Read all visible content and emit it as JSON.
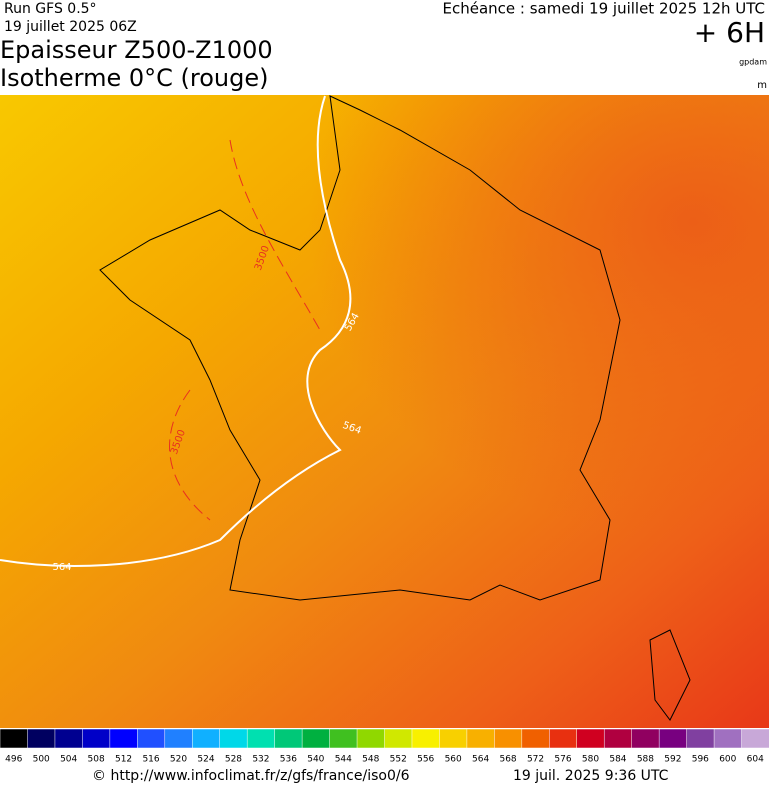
{
  "header": {
    "run": "Run GFS 0.5°",
    "date": "19 juillet 2025 06Z",
    "title1": "Epaisseur Z500-Z1000",
    "title2": "Isotherme 0°C (rouge)",
    "echeance": "Echéance : samedi 19 juillet 2025 12h UTC",
    "offset": "+ 6H",
    "unit1": "gpdam",
    "unit2": "m"
  },
  "map": {
    "contours": [
      {
        "value": 3500,
        "color": "#e83020"
      },
      {
        "value": 564,
        "color": "#ffffff"
      },
      {
        "value": 3500,
        "color": "#e83020"
      },
      {
        "value": 564,
        "color": "#ffffff"
      },
      {
        "value": 564,
        "color": "#ffffff"
      }
    ]
  },
  "colorbar": {
    "values": [
      496,
      500,
      504,
      508,
      512,
      516,
      520,
      524,
      528,
      532,
      536,
      540,
      544,
      548,
      552,
      556,
      560,
      564,
      568,
      572,
      576,
      580,
      584,
      588,
      592,
      596,
      600,
      604
    ],
    "colors": [
      "#000000",
      "#000060",
      "#000090",
      "#0000c8",
      "#0000ff",
      "#2050ff",
      "#2080ff",
      "#10b0ff",
      "#00d8e8",
      "#00e0b0",
      "#00c878",
      "#00b040",
      "#40c020",
      "#90d800",
      "#d0e800",
      "#f8f000",
      "#f8d000",
      "#f8b000",
      "#f89000",
      "#f06000",
      "#e83010",
      "#d00020",
      "#b00040",
      "#900060",
      "#780080",
      "#8040a0",
      "#a070c0",
      "#c8a8d8"
    ]
  },
  "footer": {
    "url": "© http://www.infoclimat.fr/z/gfs/france/iso0/6",
    "time": "19 juil. 2025  9:36 UTC"
  }
}
